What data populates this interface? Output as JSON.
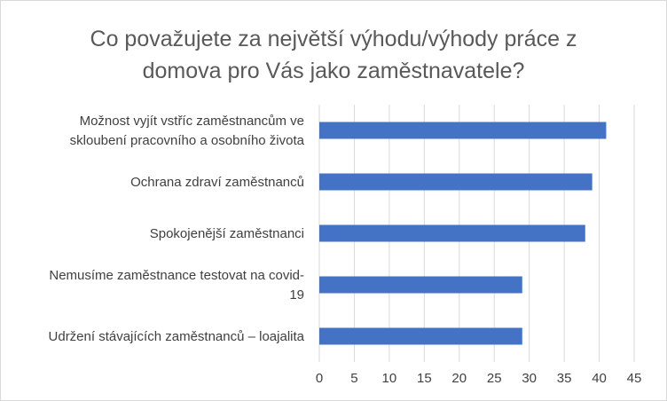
{
  "chart_data": {
    "type": "bar",
    "orientation": "horizontal",
    "title": "Co považujete za největší výhodu/výhody práce z\ndomova pro Vás jako zaměstnavatele?",
    "categories": [
      "Možnost vyjít vstříc zaměstnancům ve skloubení pracovního a osobního života",
      "Ochrana zdraví zaměstnanců",
      "Spokojenější zaměstnanci",
      "Nemusíme zaměstnance testovat na covid-19",
      "Udržení stávajících zaměstnanců – loajalita"
    ],
    "category_lines": [
      [
        "Možnost vyjít vstříc zaměstnancům ve",
        "skloubení pracovního a osobního života"
      ],
      [
        "Ochrana zdraví zaměstnanců"
      ],
      [
        "Spokojenější zaměstnanci"
      ],
      [
        "Nemusíme zaměstnance testovat na covid-",
        "19"
      ],
      [
        "Udržení stávajících zaměstnanců – loajalita"
      ]
    ],
    "values": [
      41,
      39,
      38,
      29,
      29
    ],
    "xlim": [
      0,
      45
    ],
    "xticks": [
      0,
      5,
      10,
      15,
      20,
      25,
      30,
      35,
      40,
      45
    ],
    "grid": "vertical",
    "legend": "none",
    "bar_color": "#4472C4",
    "grid_color": "#d9d9d9"
  }
}
